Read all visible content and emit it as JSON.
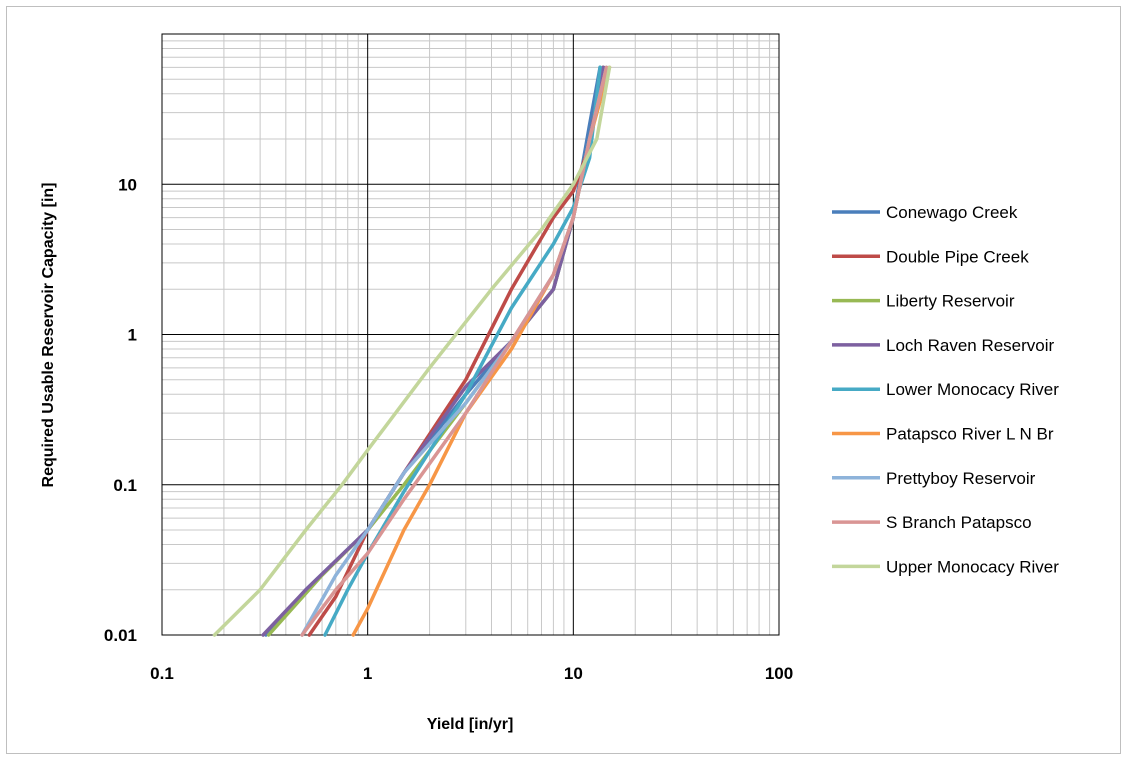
{
  "chart_data": {
    "type": "line",
    "title": "",
    "xlabel": "Yield [in/yr]",
    "ylabel": "Required Usable Reservoir Capacity [in]",
    "x_scale": "log",
    "y_scale": "log",
    "xlim": [
      0.1,
      100
    ],
    "ylim": [
      0.01,
      100
    ],
    "x_ticks": [
      {
        "value": 0.1,
        "label": "0.1"
      },
      {
        "value": 1,
        "label": "1"
      },
      {
        "value": 10,
        "label": "10"
      },
      {
        "value": 100,
        "label": "100"
      }
    ],
    "y_ticks": [
      {
        "value": 0.01,
        "label": "0.01"
      },
      {
        "value": 0.1,
        "label": "0.1"
      },
      {
        "value": 1,
        "label": "1"
      },
      {
        "value": 10,
        "label": "10"
      }
    ],
    "grid": true,
    "legend_position": "right",
    "series": [
      {
        "name": "Conewago Creek",
        "color": "#4a7ebb",
        "x": [
          0.32,
          0.5,
          1.0,
          1.5,
          3.0,
          5.0,
          8.0,
          10.0,
          12.0,
          13.5
        ],
        "y": [
          0.01,
          0.02,
          0.05,
          0.12,
          0.4,
          0.9,
          2.0,
          6.0,
          25.0,
          60.0
        ]
      },
      {
        "name": "Double Pipe Creek",
        "color": "#be4b48",
        "x": [
          0.52,
          0.7,
          1.0,
          1.5,
          3.0,
          5.0,
          8.0,
          10.0,
          12.0,
          14.0
        ],
        "y": [
          0.01,
          0.018,
          0.05,
          0.12,
          0.5,
          2.0,
          6.0,
          9.0,
          18.0,
          60.0
        ]
      },
      {
        "name": "Liberty Reservoir",
        "color": "#98b954",
        "x": [
          0.33,
          0.6,
          1.0,
          1.5,
          3.0,
          5.0,
          8.0,
          10.0,
          12.0,
          14.0
        ],
        "y": [
          0.01,
          0.025,
          0.05,
          0.1,
          0.35,
          0.9,
          2.0,
          6.0,
          20.0,
          60.0
        ]
      },
      {
        "name": "Loch Raven Reservoir",
        "color": "#7d60a0",
        "x": [
          0.31,
          0.5,
          1.0,
          1.5,
          3.0,
          5.0,
          8.0,
          10.0,
          12.0,
          14.0
        ],
        "y": [
          0.01,
          0.02,
          0.05,
          0.12,
          0.45,
          0.9,
          2.0,
          6.0,
          20.0,
          60.0
        ]
      },
      {
        "name": "Lower Monocacy River",
        "color": "#46aac5",
        "x": [
          0.62,
          0.8,
          1.0,
          1.5,
          3.0,
          5.0,
          8.0,
          10.0,
          12.0,
          13.5
        ],
        "y": [
          0.01,
          0.02,
          0.035,
          0.09,
          0.4,
          1.5,
          4.0,
          7.0,
          15.0,
          60.0
        ]
      },
      {
        "name": "Patapsco River L N Br",
        "color": "#f79646",
        "x": [
          0.85,
          1.0,
          1.5,
          2.0,
          3.0,
          5.0,
          8.0,
          10.0,
          12.0,
          15.0
        ],
        "y": [
          0.01,
          0.015,
          0.05,
          0.1,
          0.3,
          0.8,
          2.5,
          6.0,
          20.0,
          60.0
        ]
      },
      {
        "name": "Prettyboy Reservoir",
        "color": "#8eb3da",
        "x": [
          0.48,
          0.7,
          1.0,
          1.5,
          3.0,
          5.0,
          8.0,
          10.0,
          12.0,
          14.5
        ],
        "y": [
          0.01,
          0.025,
          0.05,
          0.12,
          0.35,
          0.9,
          2.5,
          6.0,
          20.0,
          60.0
        ]
      },
      {
        "name": "S Branch Patapsco",
        "color": "#d99594",
        "x": [
          0.48,
          0.7,
          1.0,
          1.5,
          3.0,
          5.0,
          8.0,
          10.0,
          12.0,
          14.5
        ],
        "y": [
          0.01,
          0.02,
          0.035,
          0.08,
          0.3,
          0.9,
          2.5,
          6.0,
          20.0,
          60.0
        ]
      },
      {
        "name": "Upper Monocacy River",
        "color": "#c3d69b",
        "x": [
          0.18,
          0.3,
          0.5,
          0.75,
          1.0,
          2.0,
          4.0,
          7.0,
          10.0,
          13.0,
          15.0
        ],
        "y": [
          0.01,
          0.02,
          0.05,
          0.1,
          0.17,
          0.6,
          2.0,
          5.0,
          10.0,
          20.0,
          60.0
        ]
      }
    ]
  }
}
